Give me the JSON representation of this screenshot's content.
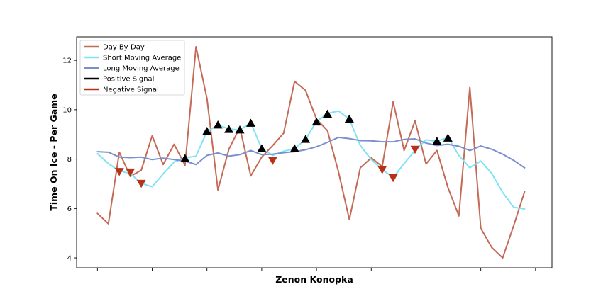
{
  "chart_data": {
    "type": "line",
    "xlabel": "Zenon Konopka",
    "ylabel": "Time On Ice - Per Game",
    "ylim": [
      3.6,
      12.95
    ],
    "xlim": [
      -1.9,
      41.5
    ],
    "yticks": [
      4,
      6,
      8,
      10,
      12
    ],
    "xticks": [
      0,
      5,
      10,
      15,
      20,
      25,
      30,
      35,
      40
    ],
    "x_tick_labels_visible": false,
    "grid": false,
    "legend_position": "top-left",
    "colors": {
      "day": "#c46a55",
      "short": "#7ee3f5",
      "long": "#7a8fcf",
      "positive": "#000000",
      "negative": "#b83218"
    },
    "legend": [
      {
        "key": "day",
        "label": "Day-By-Day"
      },
      {
        "key": "short",
        "label": "Short Moving Average"
      },
      {
        "key": "long",
        "label": "Long Moving Average"
      },
      {
        "key": "positive",
        "label": "Positive Signal"
      },
      {
        "key": "negative",
        "label": "Negative Signal"
      }
    ],
    "series": [
      {
        "key": "day",
        "name": "Day-By-Day",
        "values": [
          5.8,
          5.38,
          8.28,
          7.3,
          7.55,
          8.95,
          7.78,
          8.6,
          7.75,
          12.55,
          10.45,
          6.75,
          8.4,
          9.28,
          7.32,
          8.08,
          8.55,
          9.05,
          11.15,
          10.78,
          9.62,
          9.15,
          7.5,
          5.55,
          7.65,
          8.05,
          7.7,
          10.32,
          8.35,
          9.55,
          7.8,
          8.35,
          6.85,
          5.7,
          10.9,
          5.2,
          4.42,
          4.0,
          5.3,
          6.68
        ]
      },
      {
        "key": "short",
        "name": "Short Moving Average",
        "values": [
          8.22,
          7.82,
          7.52,
          7.42,
          7.02,
          6.88,
          7.4,
          7.88,
          8.05,
          8.12,
          9.12,
          9.38,
          9.22,
          9.18,
          9.48,
          8.42,
          8.15,
          8.32,
          8.42,
          8.8,
          9.52,
          9.85,
          9.95,
          9.62,
          8.55,
          7.98,
          7.58,
          7.25,
          7.82,
          8.35,
          8.78,
          8.72,
          8.88,
          8.15,
          7.65,
          7.92,
          7.42,
          6.65,
          6.05,
          5.98
        ]
      },
      {
        "key": "long",
        "name": "Long Moving Average",
        "values": [
          8.3,
          8.28,
          8.08,
          8.06,
          8.08,
          7.98,
          8.04,
          7.98,
          7.92,
          7.78,
          8.15,
          8.25,
          8.12,
          8.18,
          8.35,
          8.18,
          8.2,
          8.26,
          8.3,
          8.38,
          8.5,
          8.68,
          8.88,
          8.83,
          8.75,
          8.74,
          8.7,
          8.7,
          8.8,
          8.82,
          8.65,
          8.55,
          8.6,
          8.52,
          8.35,
          8.53,
          8.4,
          8.2,
          7.95,
          7.65
        ]
      }
    ],
    "positive_signals": [
      {
        "x": 8,
        "y": 8.02
      },
      {
        "x": 10,
        "y": 9.12
      },
      {
        "x": 11,
        "y": 9.38
      },
      {
        "x": 12,
        "y": 9.2
      },
      {
        "x": 13,
        "y": 9.18
      },
      {
        "x": 14,
        "y": 9.45
      },
      {
        "x": 15,
        "y": 8.42
      },
      {
        "x": 18,
        "y": 8.42
      },
      {
        "x": 19,
        "y": 8.8
      },
      {
        "x": 20,
        "y": 9.5
      },
      {
        "x": 21,
        "y": 9.82
      },
      {
        "x": 23,
        "y": 9.62
      },
      {
        "x": 31,
        "y": 8.72
      },
      {
        "x": 32,
        "y": 8.85
      }
    ],
    "negative_signals": [
      {
        "x": 2,
        "y": 7.5
      },
      {
        "x": 3,
        "y": 7.48
      },
      {
        "x": 4,
        "y": 7.02
      },
      {
        "x": 16,
        "y": 7.95
      },
      {
        "x": 26,
        "y": 7.58
      },
      {
        "x": 27,
        "y": 7.25
      },
      {
        "x": 29,
        "y": 8.4
      }
    ]
  }
}
